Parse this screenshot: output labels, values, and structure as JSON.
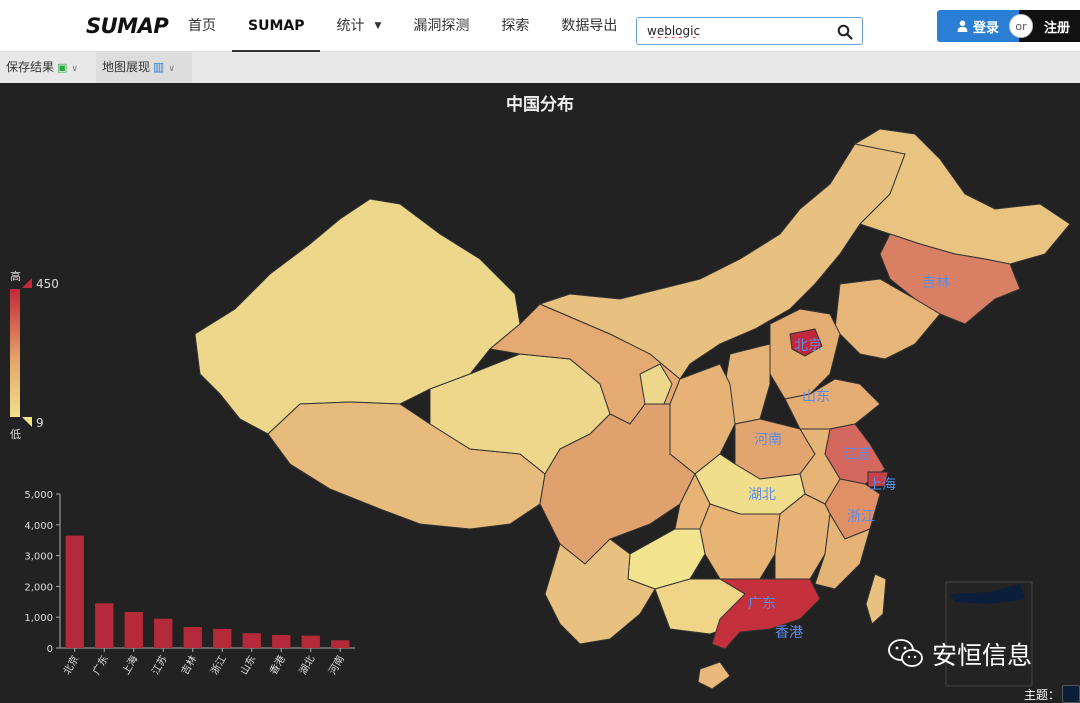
{
  "header": {
    "logo": "SUMAP",
    "nav": [
      {
        "label": "首页"
      },
      {
        "label": "SUMAP"
      },
      {
        "label": "统计"
      },
      {
        "label": "漏洞探测"
      },
      {
        "label": "探索"
      },
      {
        "label": "数据导出"
      }
    ],
    "search": {
      "value": "weblogic"
    },
    "login_label": "登录",
    "or_label": "or",
    "register_label": "注册"
  },
  "toolbar": {
    "save_label": "保存结果",
    "map_view_label": "地图展现"
  },
  "map": {
    "title": "中国分布",
    "legend": {
      "high_label": "高",
      "low_label": "低",
      "max": "450",
      "min": "9"
    },
    "province_labels": [
      "吉林",
      "北京",
      "山东",
      "河南",
      "江苏",
      "上海",
      "湖北",
      "浙江",
      "广东",
      "香港"
    ],
    "colors": {
      "high": "#c3283a",
      "mid": "#e4a46a",
      "low": "#f1e08c",
      "background": "#222222"
    }
  },
  "chart_data": {
    "type": "bar",
    "categories": [
      "北京",
      "广东",
      "上海",
      "江苏",
      "吉林",
      "浙江",
      "山东",
      "香港",
      "湖北",
      "河南"
    ],
    "values": [
      3650,
      1450,
      1170,
      950,
      680,
      620,
      480,
      420,
      400,
      250
    ],
    "ylim": [
      0,
      5000
    ],
    "yticks": [
      "0",
      "1,000",
      "2,000",
      "3,000",
      "4,000",
      "5,000"
    ],
    "bar_color": "#b52a3a"
  },
  "watermark": {
    "text": "安恒信息"
  },
  "footer": {
    "theme_label": "主题："
  }
}
